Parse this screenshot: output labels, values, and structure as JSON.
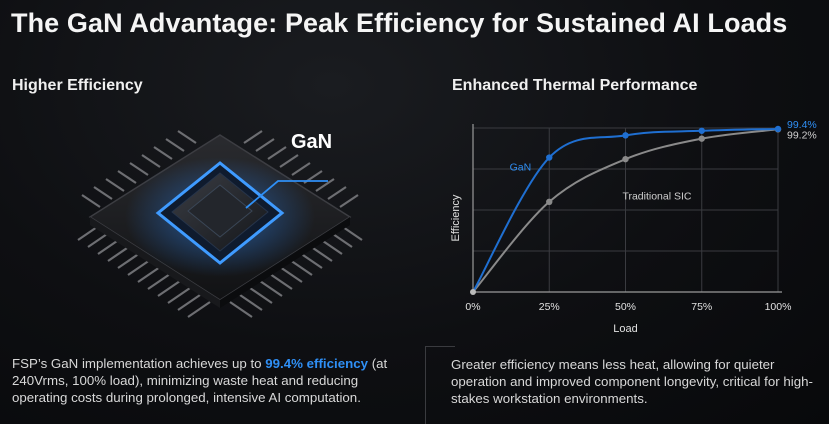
{
  "title": "The GaN Advantage: Peak Efficiency for Sustained AI Loads",
  "left": {
    "heading": "Higher Efficiency",
    "chip_label": "GaN",
    "paragraph": {
      "before": "FSP’s GaN implementation achieves up to ",
      "highlight": "99.4% efficiency",
      "after": " (at 240Vrms, 100% load), minimizing waste heat and reducing operating costs during prolonged, intensive AI computation."
    }
  },
  "right": {
    "heading": "Enhanced Thermal Performance",
    "paragraph": "Greater efficiency means less heat, allowing for quieter operation and improved component longevity, critical for high-stakes workstation environments."
  },
  "colors": {
    "gan": "#1f6fd1",
    "sic": "#8a8a8a",
    "accent": "#2f8ff5"
  },
  "chart_data": {
    "type": "line",
    "x": [
      0,
      25,
      50,
      75,
      100
    ],
    "categories": [
      "0%",
      "25%",
      "50%",
      "75%",
      "100%"
    ],
    "xlabel": "Load",
    "ylabel": "Efficiency",
    "ylim": [
      0,
      100
    ],
    "grid": true,
    "series": [
      {
        "name": "GaN",
        "values": [
          0,
          82,
          95.5,
          98.3,
          99.4
        ],
        "end_label": "99.4%"
      },
      {
        "name": "Traditional SIC",
        "values": [
          0,
          55,
          81,
          93.5,
          99.2
        ],
        "end_label": "99.2%"
      }
    ]
  }
}
